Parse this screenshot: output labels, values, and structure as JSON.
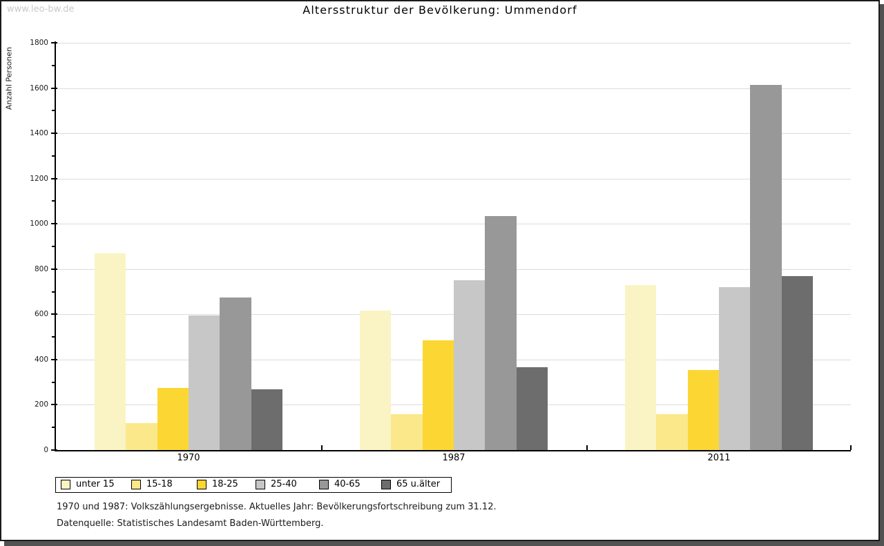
{
  "watermark": "www.leo-bw.de",
  "title": "Altersstruktur der Bevölkerung: Ummendorf",
  "footnotes": {
    "line1": "1970 und 1987: Volkszählungsergebnisse. Aktuelles Jahr: Bevölkerungsfortschreibung zum 31.12.",
    "line2": "Datenquelle: Statistisches Landesamt Baden-Württemberg."
  },
  "chart_data": {
    "type": "bar",
    "title": "Altersstruktur der Bevölkerung: Ummendorf",
    "xlabel": "",
    "ylabel": "Anzahl Personen",
    "ylim": [
      0,
      1800
    ],
    "ytick_step": 200,
    "yminortick_step": 100,
    "grid": "horizontal",
    "legend_position": "bottom-left",
    "categories": [
      "1970",
      "1987",
      "2011"
    ],
    "series": [
      {
        "name": "unter 15",
        "color": "#FAF3C4",
        "values": [
          870,
          615,
          730
        ]
      },
      {
        "name": "15-18",
        "color": "#FBE88B",
        "values": [
          120,
          160,
          160
        ]
      },
      {
        "name": "18-25",
        "color": "#FCD733",
        "values": [
          275,
          485,
          355
        ]
      },
      {
        "name": "25-40",
        "color": "#C7C7C7",
        "values": [
          595,
          750,
          720
        ]
      },
      {
        "name": "40-65",
        "color": "#989898",
        "values": [
          675,
          1035,
          1615
        ]
      },
      {
        "name": "65 u.älter",
        "color": "#6D6D6D",
        "values": [
          270,
          365,
          770
        ]
      }
    ]
  }
}
